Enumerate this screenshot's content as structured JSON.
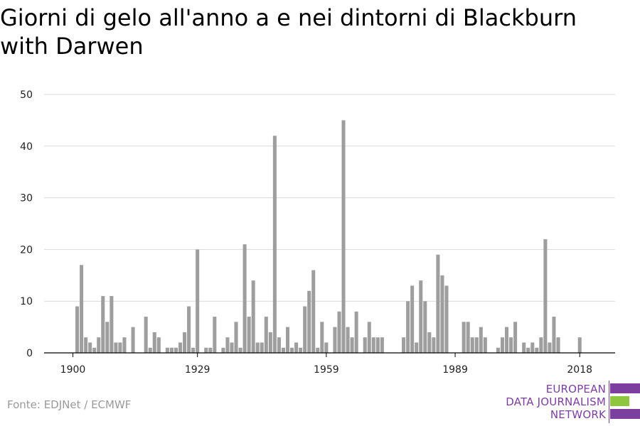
{
  "title": "Giorni di gelo all'anno a e nei dintorni di Blackburn with Darwen",
  "source": "Fonte: EDJNet / ECMWF",
  "logo": {
    "line1": "EUROPEAN",
    "line2": "DATA JOURNALISM",
    "line3": "NETWORK",
    "colors": {
      "purple": "#7b3f9e",
      "green": "#8ec63f"
    }
  },
  "colors": {
    "bar": "#9e9e9e",
    "grid": "#d9d9d9",
    "axis": "#000000"
  },
  "chart_data": {
    "type": "bar",
    "title": "Giorni di gelo all'anno a e nei dintorni di Blackburn with Darwen",
    "xlabel": "",
    "ylabel": "",
    "ylim": [
      0,
      50
    ],
    "yticks": [
      0,
      10,
      20,
      30,
      40,
      50
    ],
    "xticks": [
      1900,
      1929,
      1959,
      1989,
      2018
    ],
    "grid": true,
    "categories": [
      1900,
      1901,
      1902,
      1903,
      1904,
      1905,
      1906,
      1907,
      1908,
      1909,
      1910,
      1911,
      1912,
      1913,
      1914,
      1915,
      1916,
      1917,
      1918,
      1919,
      1920,
      1921,
      1922,
      1923,
      1924,
      1925,
      1926,
      1927,
      1928,
      1929,
      1930,
      1931,
      1932,
      1933,
      1934,
      1935,
      1936,
      1937,
      1938,
      1939,
      1940,
      1941,
      1942,
      1943,
      1944,
      1945,
      1946,
      1947,
      1948,
      1949,
      1950,
      1951,
      1952,
      1953,
      1954,
      1955,
      1956,
      1957,
      1958,
      1959,
      1960,
      1961,
      1962,
      1963,
      1964,
      1965,
      1966,
      1967,
      1968,
      1969,
      1970,
      1971,
      1972,
      1973,
      1974,
      1975,
      1976,
      1977,
      1978,
      1979,
      1980,
      1981,
      1982,
      1983,
      1984,
      1985,
      1986,
      1987,
      1988,
      1989,
      1990,
      1991,
      1992,
      1993,
      1994,
      1995,
      1996,
      1997,
      1998,
      1999,
      2000,
      2001,
      2002,
      2003,
      2004,
      2005,
      2006,
      2007,
      2008,
      2009,
      2010,
      2011,
      2012,
      2013,
      2014,
      2015,
      2016,
      2017,
      2018,
      2019
    ],
    "values": [
      0,
      9,
      17,
      3,
      2,
      1,
      3,
      11,
      6,
      11,
      2,
      2,
      3,
      0,
      5,
      0,
      0,
      7,
      1,
      4,
      3,
      0,
      1,
      1,
      1,
      2,
      4,
      9,
      1,
      20,
      0,
      1,
      1,
      7,
      0,
      1,
      3,
      2,
      6,
      1,
      21,
      7,
      14,
      2,
      2,
      7,
      4,
      42,
      3,
      1,
      5,
      1,
      2,
      1,
      9,
      12,
      16,
      1,
      6,
      2,
      0,
      5,
      8,
      45,
      5,
      3,
      8,
      0,
      3,
      6,
      3,
      3,
      3,
      0,
      0,
      0,
      0,
      3,
      10,
      13,
      2,
      14,
      10,
      4,
      3,
      19,
      15,
      13,
      0,
      0,
      0,
      6,
      6,
      3,
      3,
      5,
      3,
      0,
      0,
      1,
      3,
      5,
      3,
      6,
      0,
      2,
      1,
      2,
      1,
      3,
      22,
      2,
      7,
      3,
      0,
      0,
      0,
      0,
      3,
      0
    ]
  }
}
